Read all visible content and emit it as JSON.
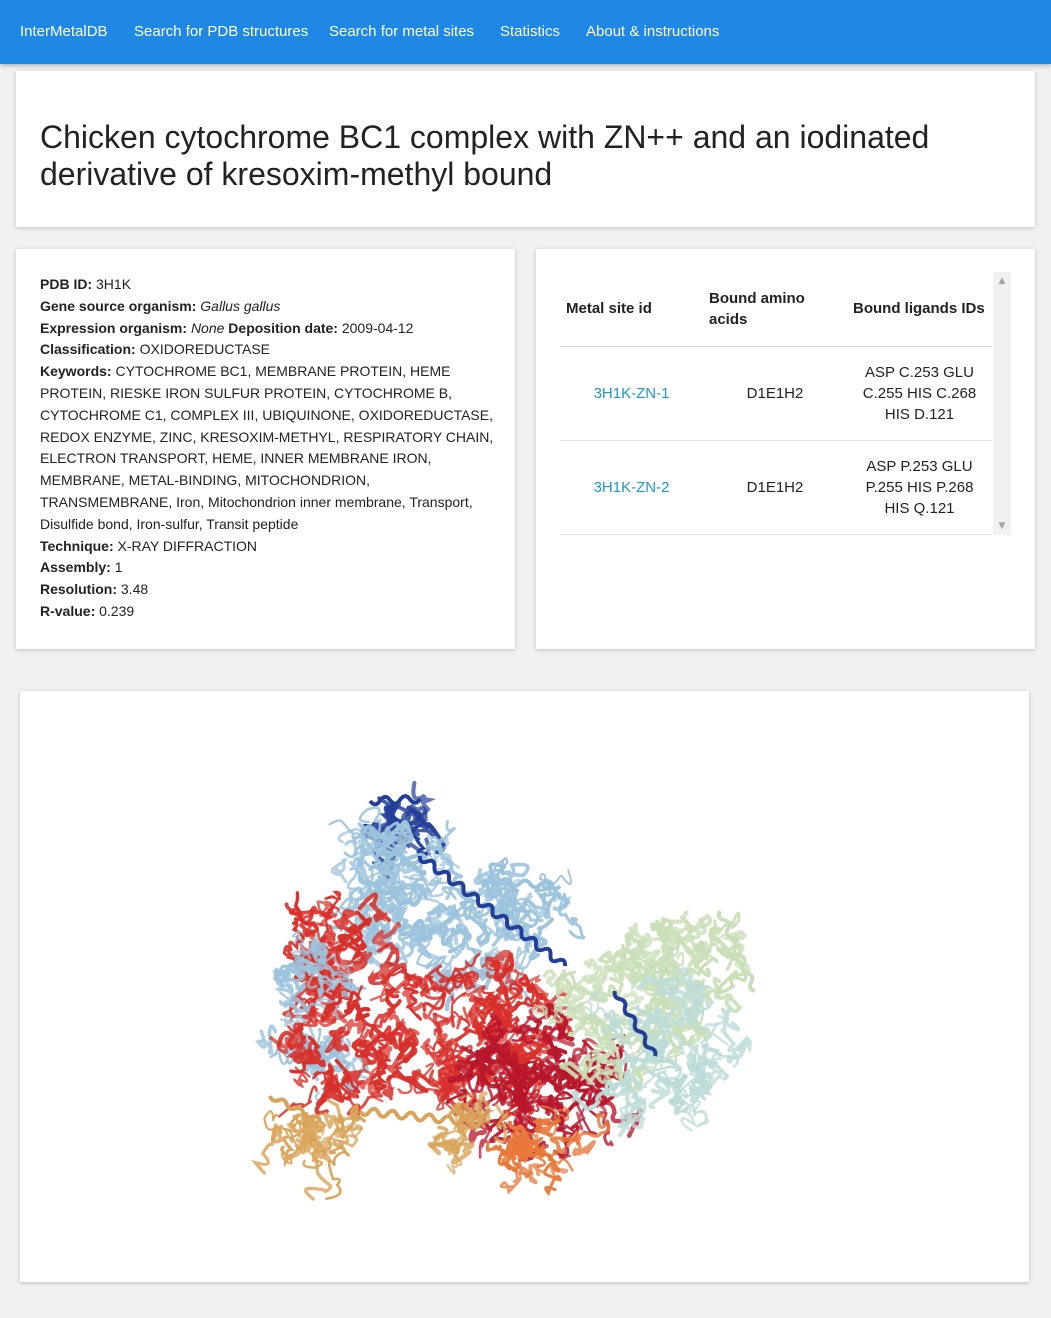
{
  "nav": {
    "brand": "InterMetalDB",
    "items": [
      {
        "label": "Search for PDB structures"
      },
      {
        "label": "Search for metal sites"
      },
      {
        "label": "Statistics"
      },
      {
        "label": "About & instructions"
      }
    ]
  },
  "header": {
    "title": "Chicken cytochrome BC1 complex with ZN++ and an iodinated derivative of kresoxim-methyl bound"
  },
  "info": {
    "pdb_id_label": "PDB ID:",
    "pdb_id": "3H1K",
    "gene_source_label": "Gene source organism:",
    "gene_source": "Gallus gallus",
    "expression_label": "Expression organism:",
    "expression": "None",
    "deposition_label": "Deposition date:",
    "deposition": "2009-04-12",
    "classification_label": "Classification:",
    "classification": "OXIDOREDUCTASE",
    "keywords_label": "Keywords:",
    "keywords": "CYTOCHROME BC1, MEMBRANE PROTEIN, HEME PROTEIN, RIESKE IRON SULFUR PROTEIN, CYTOCHROME B, CYTOCHROME C1, COMPLEX III, UBIQUINONE, OXIDOREDUCTASE, REDOX ENZYME, ZINC, KRESOXIM-METHYL, RESPIRATORY CHAIN, ELECTRON TRANSPORT, HEME, INNER MEMBRANE IRON, MEMBRANE, METAL-BINDING, MITOCHONDRION, TRANSMEMBRANE, Iron, Mitochondrion inner membrane, Transport, Disulfide bond, Iron-sulfur, Transit peptide",
    "technique_label": "Technique:",
    "technique": "X-RAY DIFFRACTION",
    "assembly_label": "Assembly:",
    "assembly": "1",
    "resolution_label": "Resolution:",
    "resolution": "3.48",
    "rvalue_label": "R-value:",
    "rvalue": "0.239"
  },
  "sites_table": {
    "headers": [
      "Metal site id",
      "Bound amino acids",
      "Bound ligands IDs"
    ],
    "rows": [
      {
        "site_id": "3H1K-ZN-1",
        "amino_acids": "D1E1H2",
        "ligands": "ASP C.253 GLU C.255 HIS C.268 HIS D.121"
      },
      {
        "site_id": "3H1K-ZN-2",
        "amino_acids": "D1E1H2",
        "ligands": "ASP P.253 GLU P.255 HIS P.268 HIS Q.121"
      }
    ]
  },
  "viewer": {
    "colors": {
      "blue_dark": "#233e99",
      "blue_light": "#9cc3dc",
      "red": "#d8302a",
      "crimson": "#b8162c",
      "orange": "#e8793a",
      "tan": "#d9a45a",
      "green_light": "#c9dfb8",
      "cyan_light": "#bcdcd9"
    }
  }
}
